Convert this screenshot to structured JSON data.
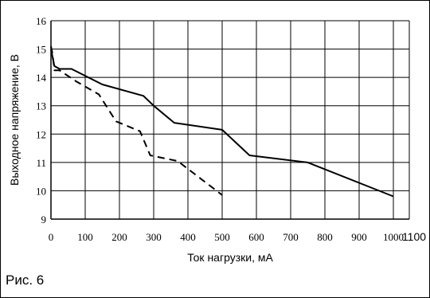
{
  "figure": {
    "caption": "Рис. 6"
  },
  "chart_data": {
    "type": "line",
    "title": "",
    "xlabel": "Ток нагрузки, мА",
    "ylabel": "Выходное напряжение, В",
    "xlim": [
      0,
      1100
    ],
    "ylim": [
      9,
      16
    ],
    "x_ticks": [
      0,
      100,
      200,
      300,
      400,
      500,
      600,
      700,
      800,
      900,
      1000,
      1100
    ],
    "y_ticks": [
      9,
      10,
      11,
      12,
      13,
      14,
      15,
      16
    ],
    "grid": true,
    "legend": "none",
    "series": [
      {
        "style": "solid",
        "color": "#000000",
        "x": [
          0,
          10,
          25,
          60,
          150,
          270,
          300,
          360,
          500,
          580,
          750,
          1000
        ],
        "y": [
          15.0,
          14.4,
          14.3,
          14.3,
          13.75,
          13.35,
          13.0,
          12.4,
          12.15,
          11.25,
          11.0,
          9.8
        ]
      },
      {
        "style": "dashed",
        "color": "#000000",
        "x": [
          0,
          5,
          10,
          25,
          75,
          140,
          190,
          260,
          290,
          370,
          500
        ],
        "y": [
          15.1,
          14.8,
          14.25,
          14.25,
          13.85,
          13.4,
          12.45,
          12.1,
          11.25,
          11.05,
          9.85
        ]
      }
    ]
  }
}
